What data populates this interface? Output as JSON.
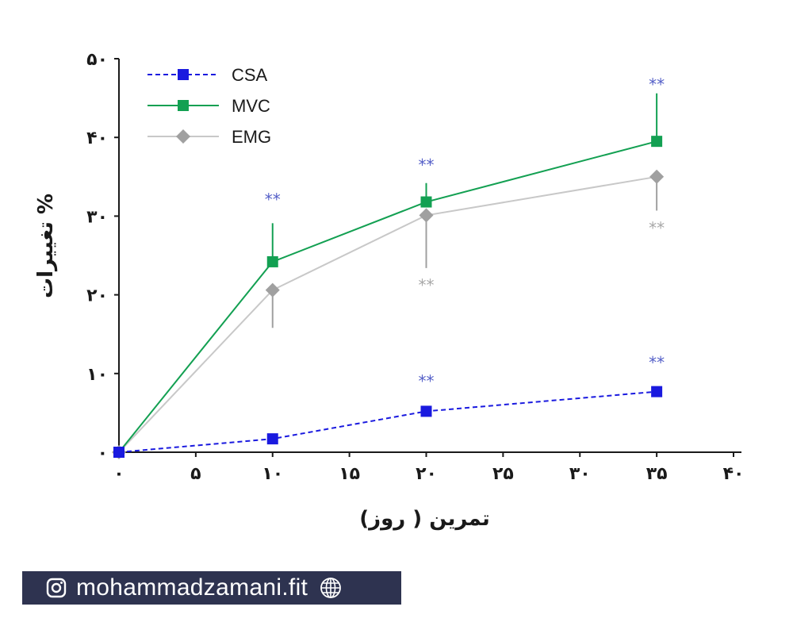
{
  "chart_data": {
    "type": "line",
    "title": "",
    "xlabel": "تمرین ( روز)",
    "ylabel": "% تغییرات",
    "xlim": [
      0,
      40
    ],
    "ylim": [
      0,
      50
    ],
    "xticks": [
      0,
      5,
      10,
      15,
      20,
      25,
      30,
      35,
      40
    ],
    "xtick_labels": [
      "۰",
      "۵",
      "۱۰",
      "۱۵",
      "۲۰",
      "۲۵",
      "۳۰",
      "۳۵",
      "۴۰"
    ],
    "yticks": [
      0,
      10,
      20,
      30,
      40,
      50
    ],
    "ytick_labels": [
      "۰",
      "۱۰",
      "۲۰",
      "۳۰",
      "۴۰",
      "۵۰"
    ],
    "grid": false,
    "legend_position": "top-left",
    "series": [
      {
        "name": "CSA",
        "color": "#1a1adf",
        "marker": "square",
        "line_style": "dashed",
        "x": [
          0,
          10,
          20,
          35
        ],
        "y": [
          0,
          1.7,
          5.2,
          7.7
        ],
        "significance": [
          {
            "x": 20,
            "y": 9.0,
            "label": "**"
          },
          {
            "x": 35,
            "y": 11.4,
            "label": "**"
          }
        ]
      },
      {
        "name": "MVC",
        "color": "#13a052",
        "marker": "square",
        "line_style": "solid",
        "x": [
          0,
          10,
          20,
          35
        ],
        "y": [
          0,
          24.2,
          31.8,
          39.5
        ],
        "error_upper": [
          0,
          29.1,
          34.2,
          45.6
        ],
        "significance": [
          {
            "x": 10,
            "y": 32.1,
            "label": "**"
          },
          {
            "x": 20,
            "y": 36.5,
            "label": "**"
          },
          {
            "x": 35,
            "y": 46.7,
            "label": "**"
          }
        ]
      },
      {
        "name": "EMG",
        "color": "#a0a0a0",
        "marker": "diamond",
        "line_style": "solid",
        "x": [
          0,
          10,
          20,
          35
        ],
        "y": [
          0,
          20.6,
          30.1,
          35.0
        ],
        "error_lower": [
          0,
          15.8,
          23.4,
          30.7
        ],
        "significance": [
          {
            "x": 20,
            "y": 21.2,
            "label": "**"
          },
          {
            "x": 35,
            "y": 28.5,
            "label": "**"
          }
        ],
        "line_color": "#c8c8c8"
      }
    ]
  },
  "footer": {
    "handle": "mohammadzamani.fit",
    "icons": [
      "instagram-icon",
      "globe-icon"
    ]
  }
}
